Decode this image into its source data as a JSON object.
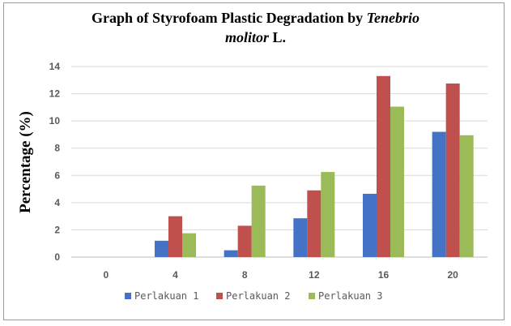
{
  "chart_data": {
    "type": "bar",
    "title_line1": "Graph  of Styrofoam Plastic Degradation by ",
    "title_italic1": "Tenebrio",
    "title_italic2": "molitor",
    "title_line2_rest": " L.",
    "xlabel": "",
    "ylabel": "Percentage (%)",
    "ylim": [
      0,
      14
    ],
    "yticks": [
      0,
      2,
      4,
      6,
      8,
      10,
      12,
      14
    ],
    "grid": true,
    "legend_position": "bottom",
    "categories": [
      "0",
      "4",
      "8",
      "12",
      "16",
      "20"
    ],
    "series": [
      {
        "name": "Perlakuan 1",
        "color": "#4472C4",
        "values": [
          0,
          1.2,
          0.5,
          2.85,
          4.65,
          9.2
        ]
      },
      {
        "name": "Perlakuan 2",
        "color": "#C0504D",
        "values": [
          0,
          3.0,
          2.3,
          4.9,
          13.3,
          12.75
        ]
      },
      {
        "name": "Perlakuan 3",
        "color": "#9BBB59",
        "values": [
          0,
          1.75,
          5.25,
          6.25,
          11.05,
          8.95
        ]
      }
    ]
  }
}
